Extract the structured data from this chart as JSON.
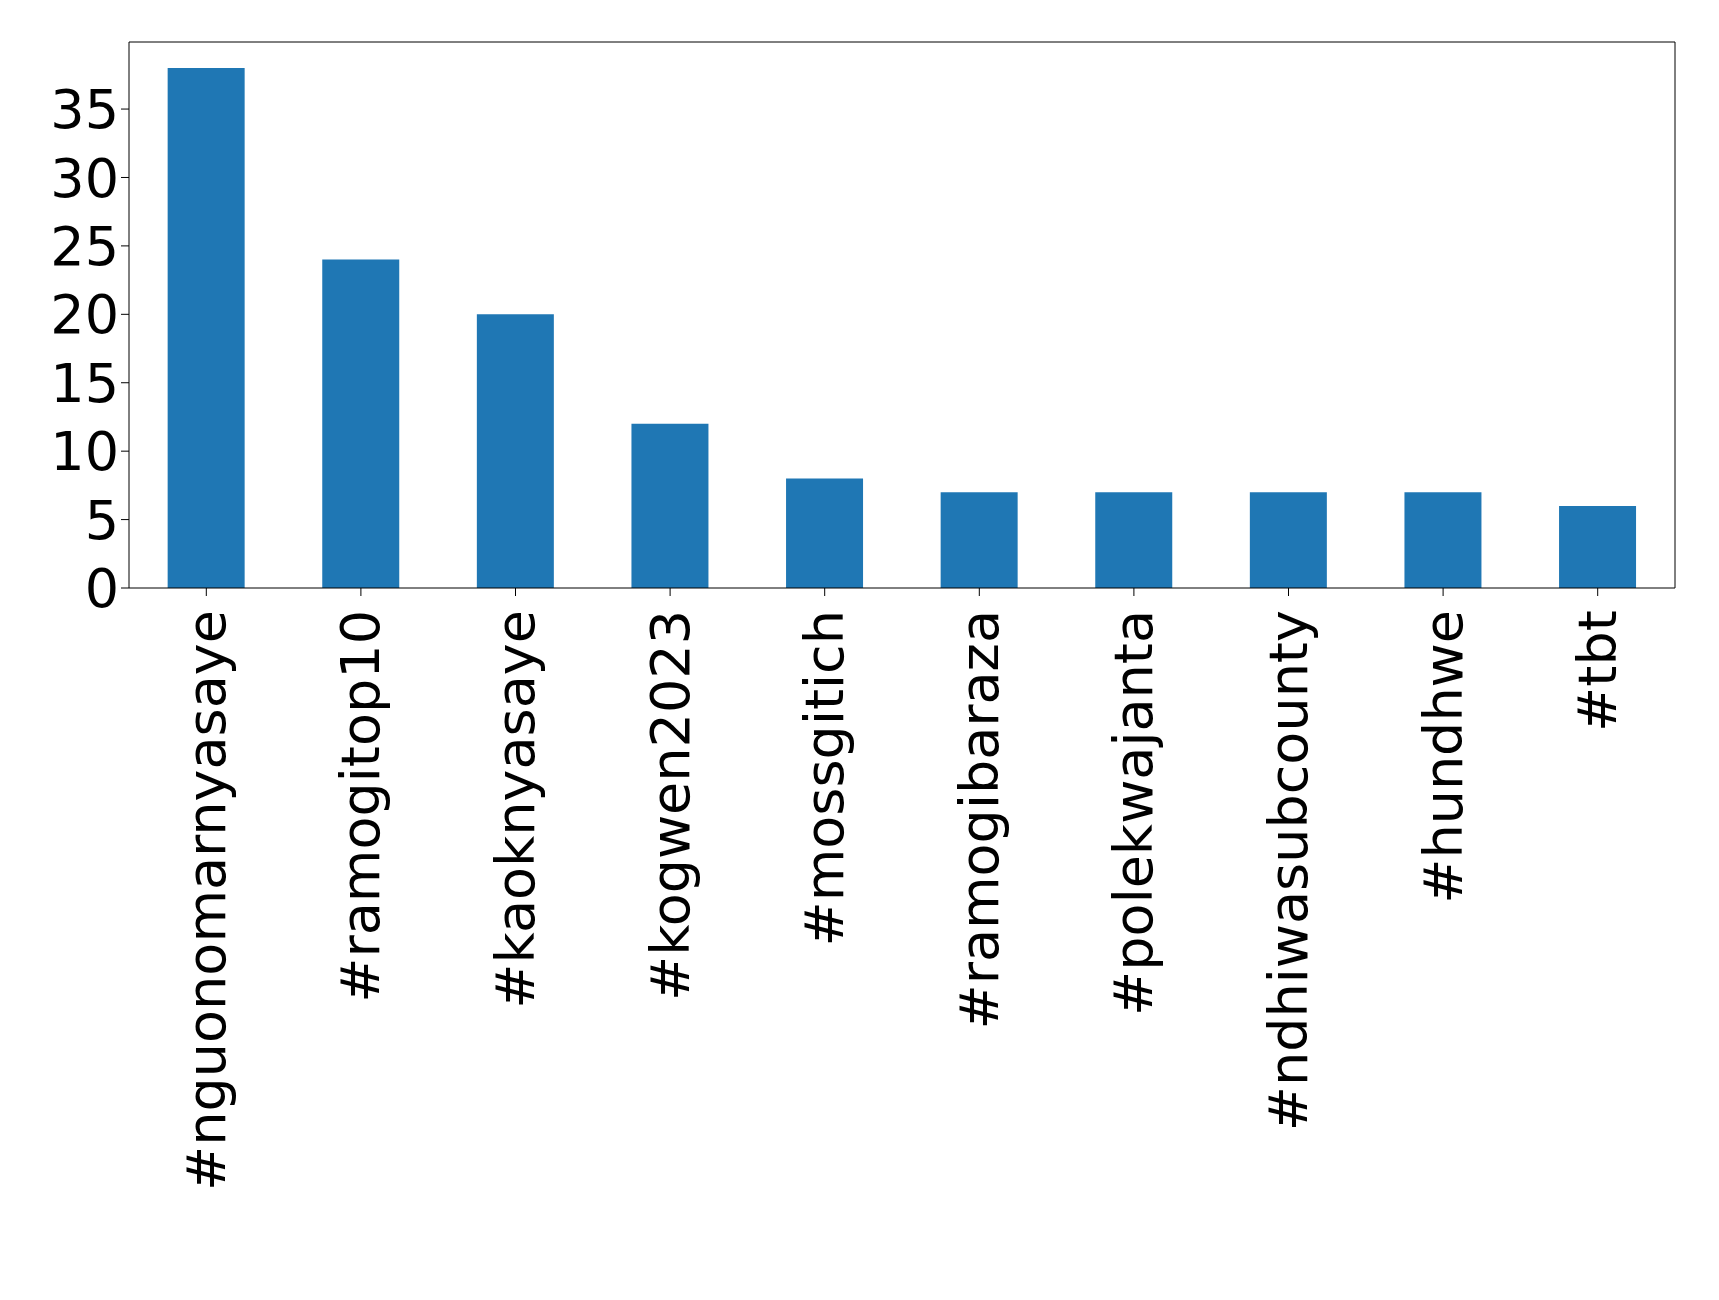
{
  "chart_data": {
    "type": "bar",
    "categories": [
      "#nguonomarnyasaye",
      "#ramogitop10",
      "#kaoknyasaye",
      "#kogwen2023",
      "#mossgitich",
      "#ramogibaraza",
      "#polekwajanta",
      "#ndhiwasubcounty",
      "#hundhwe",
      "#tbt"
    ],
    "values": [
      38,
      24,
      20,
      12,
      8,
      7,
      7,
      7,
      7,
      6
    ],
    "color": "#1f77b4",
    "ylim": [
      0,
      39.9
    ],
    "yticks": [
      0,
      5,
      10,
      15,
      20,
      25,
      30,
      35
    ],
    "grid": false,
    "legend": false
  }
}
